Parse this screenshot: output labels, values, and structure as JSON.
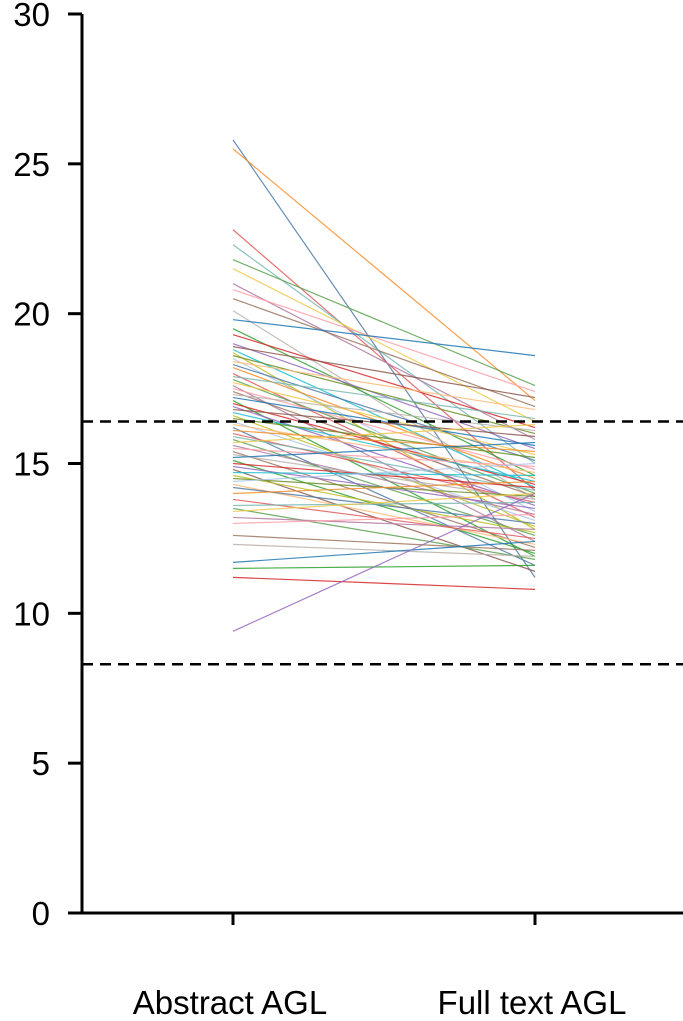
{
  "chart_data": {
    "type": "line",
    "chart_kind": "paired slope chart",
    "categories": [
      "Abstract AGL",
      "Full text AGL"
    ],
    "ylim": [
      0,
      30
    ],
    "yticks": [
      0,
      5,
      10,
      15,
      20,
      25,
      30
    ],
    "xlabel": "",
    "ylabel": "",
    "title": "",
    "grid": false,
    "legend": "none",
    "reference_lines": [
      {
        "y": 16.4,
        "style": "dashed",
        "color": "#000000"
      },
      {
        "y": 8.3,
        "style": "dashed",
        "color": "#000000"
      }
    ],
    "palette": [
      "#4e79a7",
      "#f28e2b",
      "#e15759",
      "#76b7b2",
      "#59a14f",
      "#edc948",
      "#b07aa1",
      "#ff9da7",
      "#9c755f",
      "#bab0ac",
      "#1f77b4",
      "#2ca02c",
      "#d62728",
      "#9467bd",
      "#8c564b",
      "#17becf",
      "#bcbd22",
      "#6b8e23",
      "#aec7e8",
      "#ffbb78"
    ],
    "pairs": [
      [
        25.8,
        11.2
      ],
      [
        25.5,
        17.1
      ],
      [
        22.8,
        14.1
      ],
      [
        22.3,
        15.0
      ],
      [
        21.8,
        17.6
      ],
      [
        21.5,
        16.4
      ],
      [
        21.0,
        15.8
      ],
      [
        20.8,
        17.4
      ],
      [
        20.5,
        16.9
      ],
      [
        20.1,
        13.8
      ],
      [
        19.8,
        18.6
      ],
      [
        19.5,
        14.6
      ],
      [
        19.3,
        16.2
      ],
      [
        19.0,
        15.5
      ],
      [
        18.9,
        17.2
      ],
      [
        18.8,
        14.2
      ],
      [
        18.7,
        12.8
      ],
      [
        18.6,
        16.0
      ],
      [
        18.5,
        13.4
      ],
      [
        18.4,
        16.8
      ],
      [
        18.3,
        15.1
      ],
      [
        18.2,
        14.5
      ],
      [
        18.0,
        13.2
      ],
      [
        17.9,
        16.5
      ],
      [
        17.8,
        14.0
      ],
      [
        17.7,
        15.3
      ],
      [
        17.6,
        12.4
      ],
      [
        17.5,
        14.8
      ],
      [
        17.4,
        13.9
      ],
      [
        17.3,
        16.1
      ],
      [
        17.2,
        15.6
      ],
      [
        17.1,
        11.9
      ],
      [
        17.0,
        14.3
      ],
      [
        16.9,
        13.6
      ],
      [
        16.8,
        15.9
      ],
      [
        16.7,
        14.4
      ],
      [
        16.6,
        12.9
      ],
      [
        16.5,
        15.2
      ],
      [
        16.4,
        13.1
      ],
      [
        16.3,
        14.7
      ],
      [
        16.2,
        11.6
      ],
      [
        16.1,
        15.4
      ],
      [
        16.0,
        13.7
      ],
      [
        15.9,
        14.1
      ],
      [
        15.8,
        12.6
      ],
      [
        15.7,
        16.3
      ],
      [
        15.6,
        13.3
      ],
      [
        15.5,
        14.9
      ],
      [
        15.4,
        12.2
      ],
      [
        15.3,
        13.8
      ],
      [
        15.2,
        15.7
      ],
      [
        15.1,
        12.0
      ],
      [
        15.0,
        14.2
      ],
      [
        14.9,
        13.5
      ],
      [
        14.8,
        11.4
      ],
      [
        14.7,
        14.6
      ],
      [
        14.6,
        12.7
      ],
      [
        14.5,
        13.9
      ],
      [
        14.4,
        15.0
      ],
      [
        14.3,
        12.3
      ],
      [
        14.2,
        13.0
      ],
      [
        14.0,
        14.4
      ],
      [
        13.8,
        12.5
      ],
      [
        13.6,
        13.7
      ],
      [
        13.5,
        11.8
      ],
      [
        13.4,
        14.0
      ],
      [
        13.2,
        12.8
      ],
      [
        13.0,
        13.3
      ],
      [
        12.6,
        12.1
      ],
      [
        12.3,
        11.9
      ],
      [
        11.7,
        12.4
      ],
      [
        11.5,
        11.6
      ],
      [
        11.2,
        10.8
      ],
      [
        9.4,
        14.0
      ]
    ]
  }
}
